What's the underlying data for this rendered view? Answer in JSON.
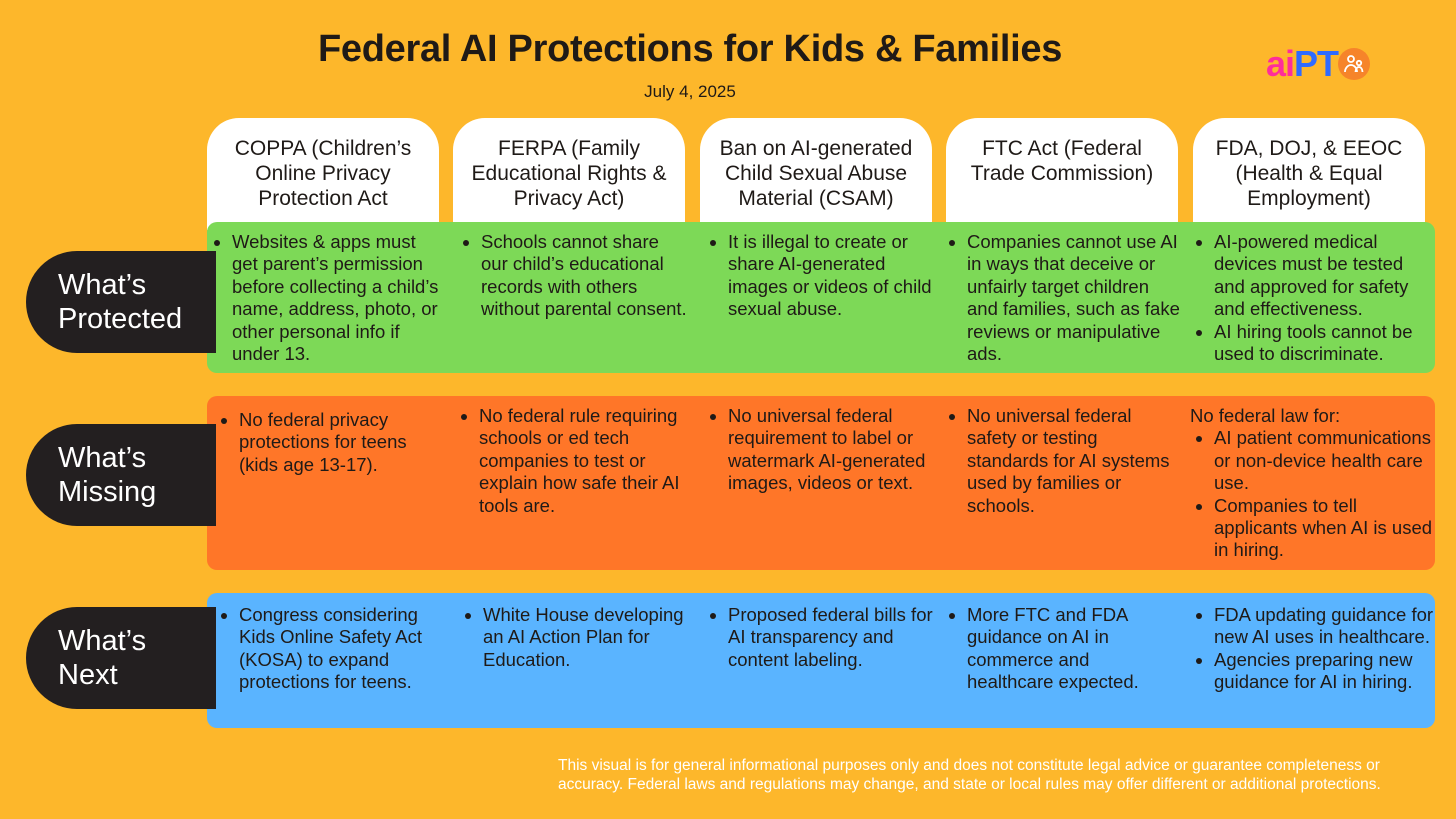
{
  "title": "Federal AI Protections for Kids & Families",
  "date": "July 4, 2025",
  "logo": {
    "part1": "ai",
    "part2": "PT",
    "icon": "parent-child-icon"
  },
  "columns": [
    "COPPA (Children’s Online Privacy Protection Act",
    "FERPA (Family Educational Rights & Privacy Act)",
    "Ban on AI-generated Child Sexual Abuse Material (CSAM)",
    "FTC Act (Federal Trade Commission)",
    "FDA, DOJ, & EEOC (Health & Equal Employment)"
  ],
  "rows": {
    "protected": {
      "label_line1": "What’s",
      "label_line2": "Protected",
      "color": "#7DD957",
      "cells": [
        {
          "bullets": [
            "Websites & apps must get parent’s permission before collecting a child’s name, address, photo, or other personal info if under 13."
          ]
        },
        {
          "bullets": [
            "Schools cannot share our child’s educational records with others without parental consent."
          ]
        },
        {
          "bullets": [
            "It is illegal to create or share AI-generated images or videos of child sexual abuse."
          ]
        },
        {
          "bullets": [
            "Companies cannot use AI in ways that deceive or unfairly target children and families, such as fake reviews or manipulative ads."
          ]
        },
        {
          "bullets": [
            "AI-powered medical devices must be tested and approved for safety and effectiveness.",
            "AI hiring tools cannot be used to discriminate."
          ]
        }
      ]
    },
    "missing": {
      "label_line1": "What’s",
      "label_line2": "Missing",
      "color": "#FF7628",
      "cells": [
        {
          "bullets": [
            "No federal privacy protections for teens (kids age 13-17)."
          ]
        },
        {
          "bullets": [
            "No federal rule requiring schools or ed tech companies to test or explain how safe their AI tools are."
          ]
        },
        {
          "bullets": [
            "No universal federal requirement to label or watermark AI-generated images, videos or text."
          ]
        },
        {
          "bullets": [
            "No universal federal safety or testing standards for AI systems used by families or schools."
          ]
        },
        {
          "lead": "No federal law for:",
          "bullets": [
            "AI patient communications or non-device health care use.",
            "Companies to tell applicants when AI is used in hiring."
          ]
        }
      ]
    },
    "next": {
      "label_line1": "What’s",
      "label_line2": "Next",
      "color": "#5AB4FF",
      "cells": [
        {
          "bullets": [
            "Congress considering Kids Online Safety Act (KOSA) to expand protections for teens."
          ]
        },
        {
          "bullets": [
            "White House developing an AI Action Plan for Education."
          ]
        },
        {
          "bullets": [
            "Proposed federal bills for AI transparency and content labeling."
          ]
        },
        {
          "bullets": [
            "More FTC and FDA guidance on AI in commerce and healthcare expected."
          ]
        },
        {
          "bullets": [
            "FDA updating guidance for new AI uses in healthcare.",
            "Agencies preparing new guidance for AI in hiring."
          ]
        }
      ]
    }
  },
  "disclaimer": "This visual is for general informational purposes only and does not constitute legal advice or guarantee completeness or accuracy. Federal laws and regulations may change, and state or local rules may offer different or additional protections."
}
